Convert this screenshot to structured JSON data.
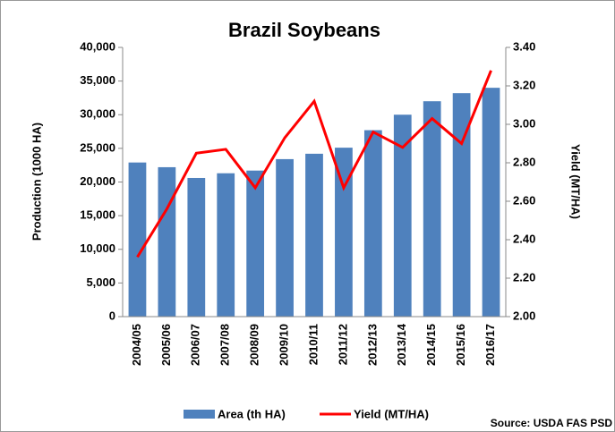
{
  "chart_data": {
    "type": "bar_line",
    "title": "Brazil Soybeans",
    "ylabel": "Production (1000 HA)",
    "y2label": "Yield (MT/HA)",
    "source": "Source: USDA FAS PSD",
    "categories": [
      "2004/05",
      "2005/06",
      "2006/07",
      "2007/08",
      "2008/09",
      "2009/10",
      "2010/11",
      "2011/12",
      "2012/13",
      "2013/14",
      "2014/15",
      "2015/16",
      "2016/17"
    ],
    "series": [
      {
        "name": "Area (th HA)",
        "type": "bar",
        "color": "#4f81bd",
        "values": [
          22900,
          22200,
          20600,
          21300,
          21700,
          23400,
          24200,
          25100,
          27700,
          30000,
          32000,
          33200,
          34000
        ]
      },
      {
        "name": "Yield (MT/HA)",
        "type": "line",
        "axis": "y2",
        "color": "#ff0000",
        "values": [
          2.31,
          2.56,
          2.85,
          2.87,
          2.67,
          2.93,
          3.12,
          2.67,
          2.96,
          2.88,
          3.03,
          2.9,
          3.28
        ]
      }
    ],
    "ylim": [
      0,
      40000
    ],
    "yticks": [
      0,
      {
        "value": 5000,
        "label": "5,000"
      },
      {
        "value": 10000,
        "label": "10,000"
      },
      {
        "value": 15000,
        "label": "15,000"
      },
      {
        "value": 20000,
        "label": "20,000"
      },
      {
        "value": 25000,
        "label": "25,000"
      },
      {
        "value": 30000,
        "label": "30,000"
      },
      {
        "value": 35000,
        "label": "35,000"
      },
      {
        "value": 40000,
        "label": "40,000"
      }
    ],
    "y2lim": [
      2.0,
      3.4
    ],
    "y2ticks": [
      {
        "value": 2.0,
        "label": "2.00"
      },
      {
        "value": 2.2,
        "label": "2.20"
      },
      {
        "value": 2.4,
        "label": "2.40"
      },
      {
        "value": 2.6,
        "label": "2.60"
      },
      {
        "value": 2.8,
        "label": "2.80"
      },
      {
        "value": 3.0,
        "label": "3.00"
      },
      {
        "value": 3.2,
        "label": "3.20"
      },
      {
        "value": 3.4,
        "label": "3.40"
      }
    ],
    "grid": false,
    "legend": "bottom"
  }
}
